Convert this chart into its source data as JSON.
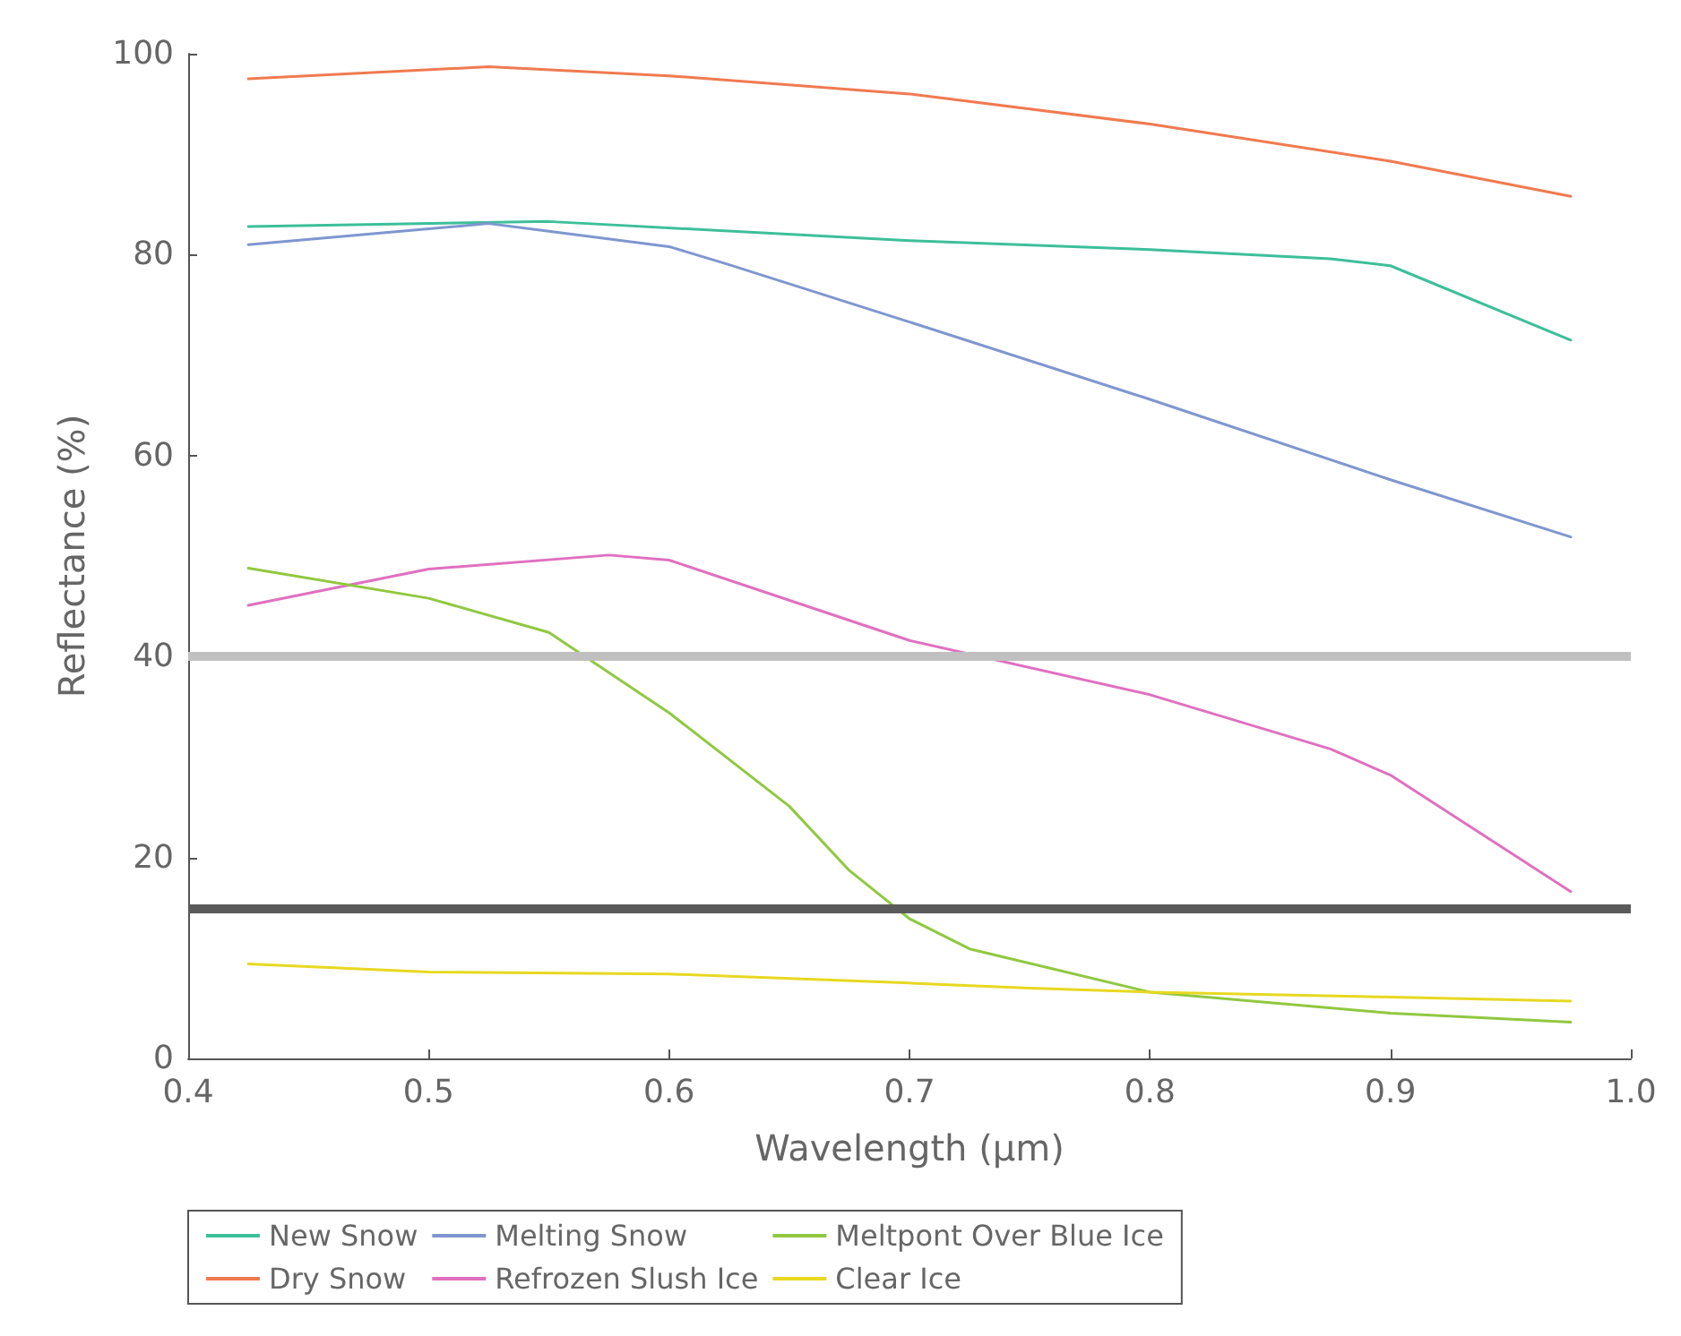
{
  "chart_data": {
    "type": "line",
    "xlabel": "Wavelength (µm)",
    "ylabel": "Reflectance (%)",
    "xlim": [
      0.4,
      1.0
    ],
    "xticks": [
      0.4,
      0.5,
      0.6,
      0.7,
      0.8,
      0.9,
      {
        "value": 1.0,
        "label": "1.0"
      }
    ],
    "ylim": [
      0,
      100
    ],
    "yticks": [
      0,
      20,
      40,
      60,
      80,
      100
    ],
    "grid": false,
    "legend": "bottom",
    "marker": "none",
    "line_style": "solid",
    "ref_lines": [
      {
        "axis": "y",
        "value": 40,
        "color": "#c0c0c0"
      },
      {
        "axis": "y",
        "value": 15,
        "color": "#5a5a5a"
      }
    ],
    "series": [
      {
        "name": "New Snow",
        "color": "#3dbf99",
        "x": [
          0.425,
          0.55,
          0.7,
          0.8,
          0.875,
          0.9,
          0.975
        ],
        "values": [
          82.8,
          83.3,
          81.4,
          80.5,
          79.6,
          78.9,
          71.5
        ]
      },
      {
        "name": "Dry Snow",
        "color": "#f07a50",
        "x": [
          0.425,
          0.525,
          0.6,
          0.7,
          0.8,
          0.9,
          0.975
        ],
        "values": [
          97.5,
          98.7,
          97.8,
          96,
          93,
          89.3,
          85.8
        ]
      },
      {
        "name": "Melting Snow",
        "color": "#7f96d0",
        "x": [
          0.425,
          0.525,
          0.6,
          0.625,
          0.7,
          0.8,
          0.9,
          0.975
        ],
        "values": [
          81,
          83.1,
          80.8,
          79,
          73.3,
          65.6,
          57.6,
          51.9
        ]
      },
      {
        "name": "Refrozen Slush Ice",
        "color": "#e070c0",
        "x": [
          0.425,
          0.5,
          0.575,
          0.6,
          0.7,
          0.8,
          0.875,
          0.9,
          0.975
        ],
        "values": [
          45.1,
          48.7,
          50.1,
          49.6,
          41.6,
          36.2,
          30.8,
          28.2,
          16.6
        ]
      },
      {
        "name": "Meltpont Over Blue Ice",
        "color": "#90c840",
        "x": [
          0.425,
          0.5,
          0.55,
          0.6,
          0.65,
          0.675,
          0.7,
          0.725,
          0.8,
          0.9,
          0.975
        ],
        "values": [
          48.8,
          45.8,
          42.4,
          34.4,
          25.1,
          18.7,
          13.9,
          10.9,
          6.6,
          4.5,
          3.6
        ]
      },
      {
        "name": "Clear Ice",
        "color": "#e8d820",
        "x": [
          0.425,
          0.5,
          0.6,
          0.7,
          0.75,
          0.8,
          0.9,
          0.975
        ],
        "values": [
          9.4,
          8.6,
          8.4,
          7.5,
          7.0,
          6.6,
          6.1,
          5.7
        ]
      }
    ]
  }
}
